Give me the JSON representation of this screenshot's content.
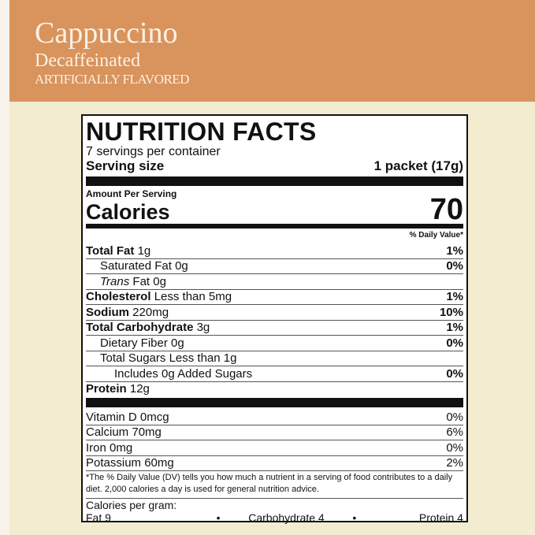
{
  "brand": {
    "name": "Cappuccino",
    "subtitle": "Decaffeinated",
    "flavor": "ARTIFICIALLY FLAVORED"
  },
  "label": {
    "title": "NUTRITION FACTS",
    "servings": "7 servings per container",
    "serving_size_label": "Serving size",
    "serving_size": "1 packet (17g)",
    "amount_per_serving": "Amount Per Serving",
    "calories_label": "Calories",
    "calories": "70",
    "dv_header": "% Daily Value*",
    "nutrients": [
      {
        "name": "Total Fat",
        "amount": "1g",
        "dv": "1%",
        "bold": true,
        "indent": 0
      },
      {
        "name": "Saturated Fat",
        "amount": "0g",
        "dv": "0%",
        "bold": false,
        "indent": 1
      },
      {
        "name": "Trans",
        "amount": "Fat 0g",
        "dv": "",
        "bold": false,
        "indent": 1,
        "italic": true
      },
      {
        "name": "Cholesterol",
        "amount": "Less than 5mg",
        "dv": "1%",
        "bold": true,
        "indent": 0
      },
      {
        "name": "Sodium",
        "amount": "220mg",
        "dv": "10%",
        "bold": true,
        "indent": 0
      },
      {
        "name": "Total Carbohydrate",
        "amount": "3g",
        "dv": "1%",
        "bold": true,
        "indent": 0
      },
      {
        "name": "Dietary Fiber",
        "amount": "0g",
        "dv": "0%",
        "bold": false,
        "indent": 1
      },
      {
        "name": "Total Sugars",
        "amount": "Less than 1g",
        "dv": "",
        "bold": false,
        "indent": 1
      },
      {
        "name": "Includes",
        "amount": "0g Added Sugars",
        "dv": "0%",
        "bold": false,
        "indent": 2
      },
      {
        "name": "Protein",
        "amount": "12g",
        "dv": "",
        "bold": true,
        "indent": 0
      }
    ],
    "vitamins": [
      {
        "name": "Vitamin D",
        "amount": "0mcg",
        "dv": "0%"
      },
      {
        "name": "Calcium",
        "amount": "70mg",
        "dv": "6%"
      },
      {
        "name": "Iron",
        "amount": "0mg",
        "dv": "0%"
      },
      {
        "name": "Potassium",
        "amount": "60mg",
        "dv": "2%"
      }
    ],
    "footnote": "*The % Daily Value (DV) tells you how much a nutrient in a serving of food contributes to a daily diet. 2,000 calories a day is used for general nutrition advice.",
    "cal_per_gram": "Calories per gram:",
    "fat": "Fat 9",
    "carb": "Carbohydrate 4",
    "protein": "Protein 4",
    "bullet": "•"
  }
}
